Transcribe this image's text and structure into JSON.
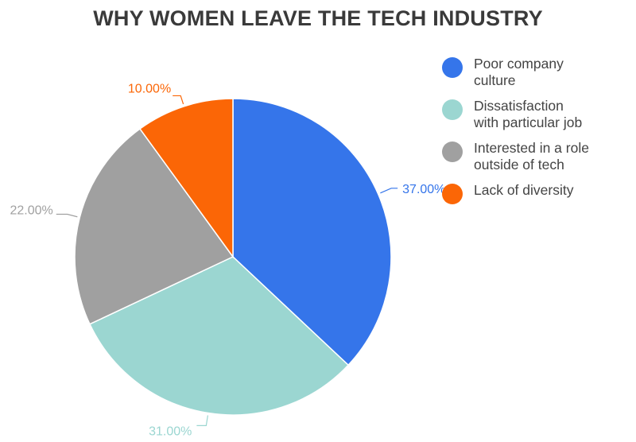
{
  "chart_data": {
    "type": "pie",
    "title": "WHY WOMEN LEAVE THE TECH INDUSTRY",
    "slices": [
      {
        "label": "Poor company\nculture",
        "value": 37.0,
        "display": "37.00%",
        "color": "#3575ea"
      },
      {
        "label": "Dissatisfaction\nwith particular job",
        "value": 31.0,
        "display": "31.00%",
        "color": "#9bd6d1"
      },
      {
        "label": "Interested in a role\noutside of tech",
        "value": 22.0,
        "display": "22.00%",
        "color": "#a0a0a0"
      },
      {
        "label": "Lack of diversity",
        "value": 10.0,
        "display": "10.00%",
        "color": "#fb6606"
      }
    ],
    "legend_position": "right",
    "start_angle": "12 o'clock, clockwise"
  }
}
